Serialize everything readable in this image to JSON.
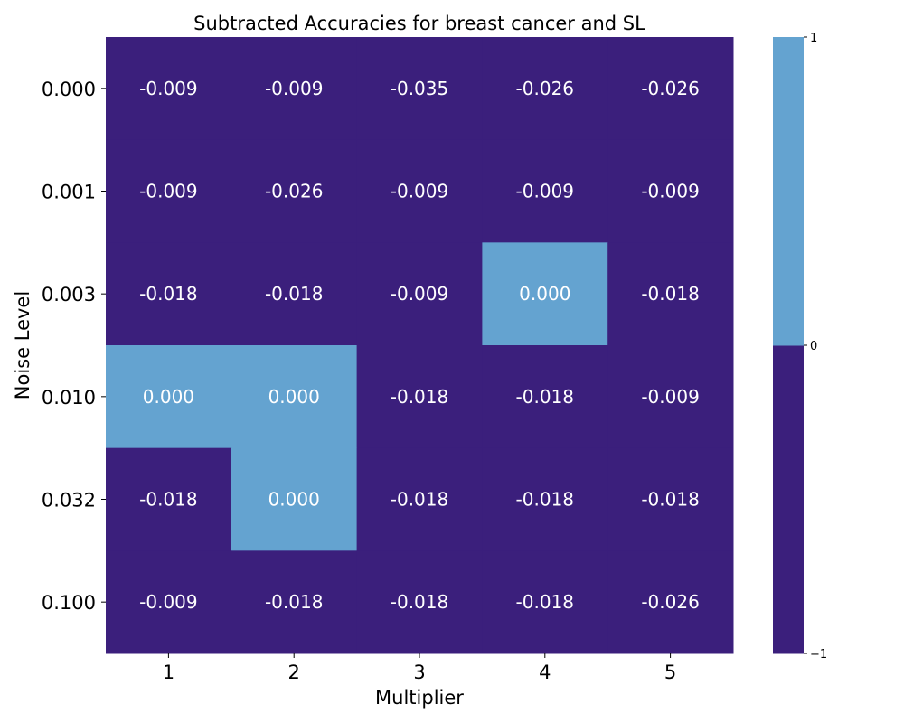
{
  "chart_data": {
    "type": "heatmap",
    "title": "Subtracted Accuracies for breast cancer and SL",
    "xlabel": "Multiplier",
    "ylabel": "Noise Level",
    "x_categories": [
      "1",
      "2",
      "3",
      "4",
      "5"
    ],
    "y_categories": [
      "0.000",
      "0.001",
      "0.003",
      "0.010",
      "0.032",
      "0.100"
    ],
    "values": [
      [
        -0.009,
        -0.009,
        -0.035,
        -0.026,
        -0.026
      ],
      [
        -0.009,
        -0.026,
        -0.009,
        -0.009,
        -0.009
      ],
      [
        -0.018,
        -0.018,
        -0.009,
        0.0,
        -0.018
      ],
      [
        0.0,
        0.0,
        -0.018,
        -0.018,
        -0.009
      ],
      [
        -0.018,
        0.0,
        -0.018,
        -0.018,
        -0.018
      ],
      [
        -0.009,
        -0.018,
        -0.018,
        -0.018,
        -0.026
      ]
    ],
    "cell_labels": [
      [
        "-0.009",
        "-0.009",
        "-0.035",
        "-0.026",
        "-0.026"
      ],
      [
        "-0.009",
        "-0.026",
        "-0.009",
        "-0.009",
        "-0.009"
      ],
      [
        "-0.018",
        "-0.018",
        "-0.009",
        "0.000",
        "-0.018"
      ],
      [
        "0.000",
        "0.000",
        "-0.018",
        "-0.018",
        "-0.009"
      ],
      [
        "-0.018",
        "0.000",
        "-0.018",
        "-0.018",
        "-0.018"
      ],
      [
        "-0.009",
        "-0.018",
        "-0.018",
        "-0.018",
        "-0.026"
      ]
    ],
    "colorbar": {
      "range": [
        -1,
        1
      ],
      "boundaries": [
        -1,
        0,
        1
      ],
      "colors": [
        "#3b1f7c",
        "#64a3d0"
      ],
      "tick_labels": [
        "−1",
        "0",
        "1"
      ]
    },
    "annotation_color": "#ffffff",
    "grid": false
  }
}
